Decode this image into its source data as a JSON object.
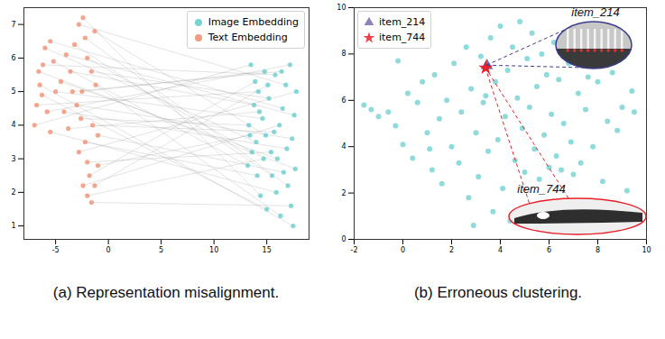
{
  "chart_data": [
    {
      "type": "scatter",
      "title": "(a) Representation misalignment.",
      "xlim": [
        -8,
        19
      ],
      "xticks": [
        -5,
        0,
        5,
        10,
        15
      ],
      "ylim": [
        0.6,
        7.5
      ],
      "yticks": [
        1,
        2,
        3,
        4,
        5,
        6,
        7
      ],
      "legend": "upper right",
      "series": [
        {
          "name": "Image Embedding",
          "color": "#5fcaca",
          "marker": "circle",
          "x": [
            13.5,
            14.2,
            17.5,
            15.8,
            14.0,
            16.5,
            13.2,
            17.2,
            15.0,
            14.6,
            16.0,
            17.6,
            13.8,
            15.5,
            16.8,
            14.4,
            17.0,
            13.6,
            15.2,
            16.3,
            14.8,
            17.4,
            13.3,
            15.7,
            16.6,
            14.1,
            17.8,
            15.4,
            13.9,
            16.2,
            14.7,
            17.3,
            15.1,
            13.4,
            16.9,
            14.3,
            15.9,
            17.7,
            14.9,
            16.4
          ],
          "values": [
            5.8,
            5.0,
            1.0,
            5.5,
            3.5,
            4.5,
            2.8,
            5.8,
            1.5,
            4.2,
            3.0,
            4.3,
            4.6,
            2.5,
            5.2,
            1.9,
            2.2,
            3.2,
            4.8,
            1.3,
            5.6,
            3.6,
            4.0,
            3.8,
            2.6,
            2.5,
            5.0,
            3.2,
            5.3,
            4.0,
            3.0,
            1.6,
            5.2,
            3.7,
            3.3,
            4.4,
            2.0,
            2.7,
            3.7,
            5.6
          ]
        },
        {
          "name": "Text Embedding",
          "color": "#f0896a",
          "marker": "circle",
          "x": [
            -7.0,
            -6.8,
            -6.5,
            -6.2,
            -6.0,
            -5.5,
            -5.2,
            -5.8,
            -6.3,
            -5.0,
            -4.5,
            -4.0,
            -3.6,
            -3.2,
            -2.8,
            -2.4,
            -2.2,
            -2.0,
            -1.6,
            -1.2,
            -2.5,
            -3.0,
            -2.6,
            -1.5,
            -1.0,
            -2.2,
            -2.8,
            -2.0,
            -1.8,
            -2.4,
            -2.0,
            -1.6,
            -1.3,
            -1.0,
            -4.2,
            -3.8,
            -5.5,
            -6.6,
            -1.3,
            -3.4
          ],
          "values": [
            4.0,
            4.6,
            5.2,
            5.8,
            6.3,
            6.5,
            5.9,
            4.4,
            4.9,
            5.0,
            5.3,
            6.1,
            5.6,
            6.4,
            7.0,
            7.2,
            6.6,
            6.0,
            5.6,
            5.2,
            5.0,
            4.6,
            4.2,
            4.0,
            3.7,
            3.5,
            3.2,
            2.9,
            2.5,
            2.2,
            1.9,
            1.7,
            2.2,
            2.8,
            4.4,
            3.9,
            3.8,
            5.6,
            6.8,
            5.0
          ]
        }
      ]
    },
    {
      "type": "scatter",
      "title": "(b) Erroneous clustering.",
      "xlim": [
        -2,
        10
      ],
      "xticks": [
        -2,
        0,
        2,
        4,
        6,
        8,
        10
      ],
      "ylim": [
        0,
        10
      ],
      "yticks": [
        0,
        2,
        4,
        6,
        8,
        10
      ],
      "legend": "upper left",
      "color": "#5fcaca",
      "marker": "circle",
      "x": [
        -1.6,
        -1.3,
        -1.0,
        -0.6,
        -0.3,
        0.0,
        -0.2,
        0.2,
        0.4,
        0.6,
        0.8,
        1.0,
        1.2,
        1.3,
        1.5,
        1.6,
        1.8,
        2.0,
        2.1,
        2.3,
        2.4,
        2.6,
        2.7,
        2.8,
        3.0,
        3.1,
        3.2,
        3.3,
        3.5,
        3.6,
        3.7,
        3.8,
        3.9,
        4.0,
        4.1,
        4.2,
        4.3,
        4.4,
        4.5,
        4.6,
        4.7,
        4.8,
        4.9,
        5.0,
        5.1,
        5.2,
        5.3,
        5.4,
        5.5,
        5.6,
        5.7,
        5.8,
        5.9,
        6.0,
        6.1,
        6.2,
        6.3,
        6.4,
        6.5,
        6.6,
        6.8,
        6.9,
        7.0,
        7.2,
        7.3,
        7.5,
        7.6,
        7.8,
        8.0,
        8.2,
        8.4,
        8.6,
        8.8,
        9.0,
        9.2,
        9.4,
        9.5,
        2.9,
        1.1,
        3.4
      ],
      "values": [
        5.8,
        5.6,
        5.3,
        5.5,
        4.9,
        4.1,
        7.7,
        6.3,
        3.5,
        5.9,
        6.8,
        4.6,
        3.0,
        7.1,
        5.2,
        2.4,
        6.0,
        4.0,
        7.6,
        3.3,
        5.5,
        8.3,
        1.8,
        6.5,
        4.6,
        2.7,
        7.9,
        5.9,
        3.8,
        8.7,
        1.2,
        6.8,
        4.3,
        9.2,
        2.2,
        5.3,
        7.3,
        0.8,
        8.3,
        3.4,
        6.1,
        9.4,
        4.8,
        2.9,
        7.8,
        5.7,
        8.9,
        3.9,
        6.6,
        2.6,
        8.0,
        4.5,
        7.1,
        3.1,
        5.4,
        8.5,
        3.6,
        6.9,
        3.0,
        5.0,
        7.6,
        4.2,
        2.8,
        6.3,
        3.3,
        5.6,
        7.0,
        4.0,
        6.8,
        2.5,
        5.1,
        7.2,
        4.7,
        5.7,
        2.1,
        6.4,
        5.5,
        0.6,
        3.9,
        6.2
      ],
      "series": [
        {
          "name": "item_214",
          "color": "#7570a8",
          "marker": "triangle",
          "x": [
            3.45
          ],
          "values": [
            7.5
          ]
        },
        {
          "name": "item_744",
          "color": "#e8202a",
          "marker": "star",
          "x": [
            3.4
          ],
          "values": [
            7.4
          ]
        }
      ],
      "annotations": [
        "item_214",
        "item_744"
      ]
    }
  ]
}
